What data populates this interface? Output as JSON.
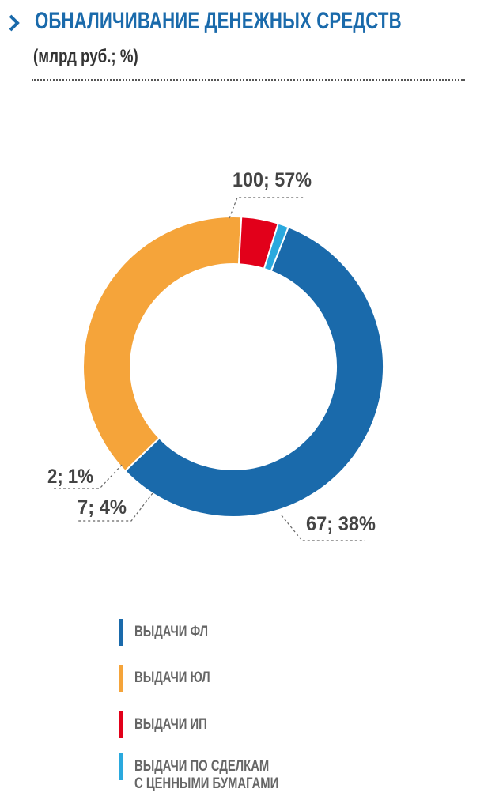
{
  "header": {
    "title": "ОБНАЛИЧИВАНИЕ ДЕНЕЖНЫХ СРЕДСТВ",
    "subtitle": "(млрд руб.; %)",
    "icon": "chevron-right-icon",
    "accent_color": "#1a6aab"
  },
  "chart_data": {
    "type": "pie",
    "style": "donut",
    "series": [
      {
        "name": "ВЫДАЧИ ФЛ",
        "value": 100,
        "percent": 57,
        "label": "100; 57%",
        "color": "#1a6aab"
      },
      {
        "name": "ВЫДАЧИ ЮЛ",
        "value": 67,
        "percent": 38,
        "label": "67; 38%",
        "color": "#f5a43a"
      },
      {
        "name": "ВЫДАЧИ ИП",
        "value": 7,
        "percent": 4,
        "label": "7; 4%",
        "color": "#e2001a"
      },
      {
        "name": "ВЫДАЧИ ПО СДЕЛКАМ\nС ЦЕННЫМИ БУМАГАМИ",
        "value": 2,
        "percent": 1,
        "label": "2; 1%",
        "color": "#2aa9de"
      }
    ],
    "legend_position": "bottom"
  }
}
